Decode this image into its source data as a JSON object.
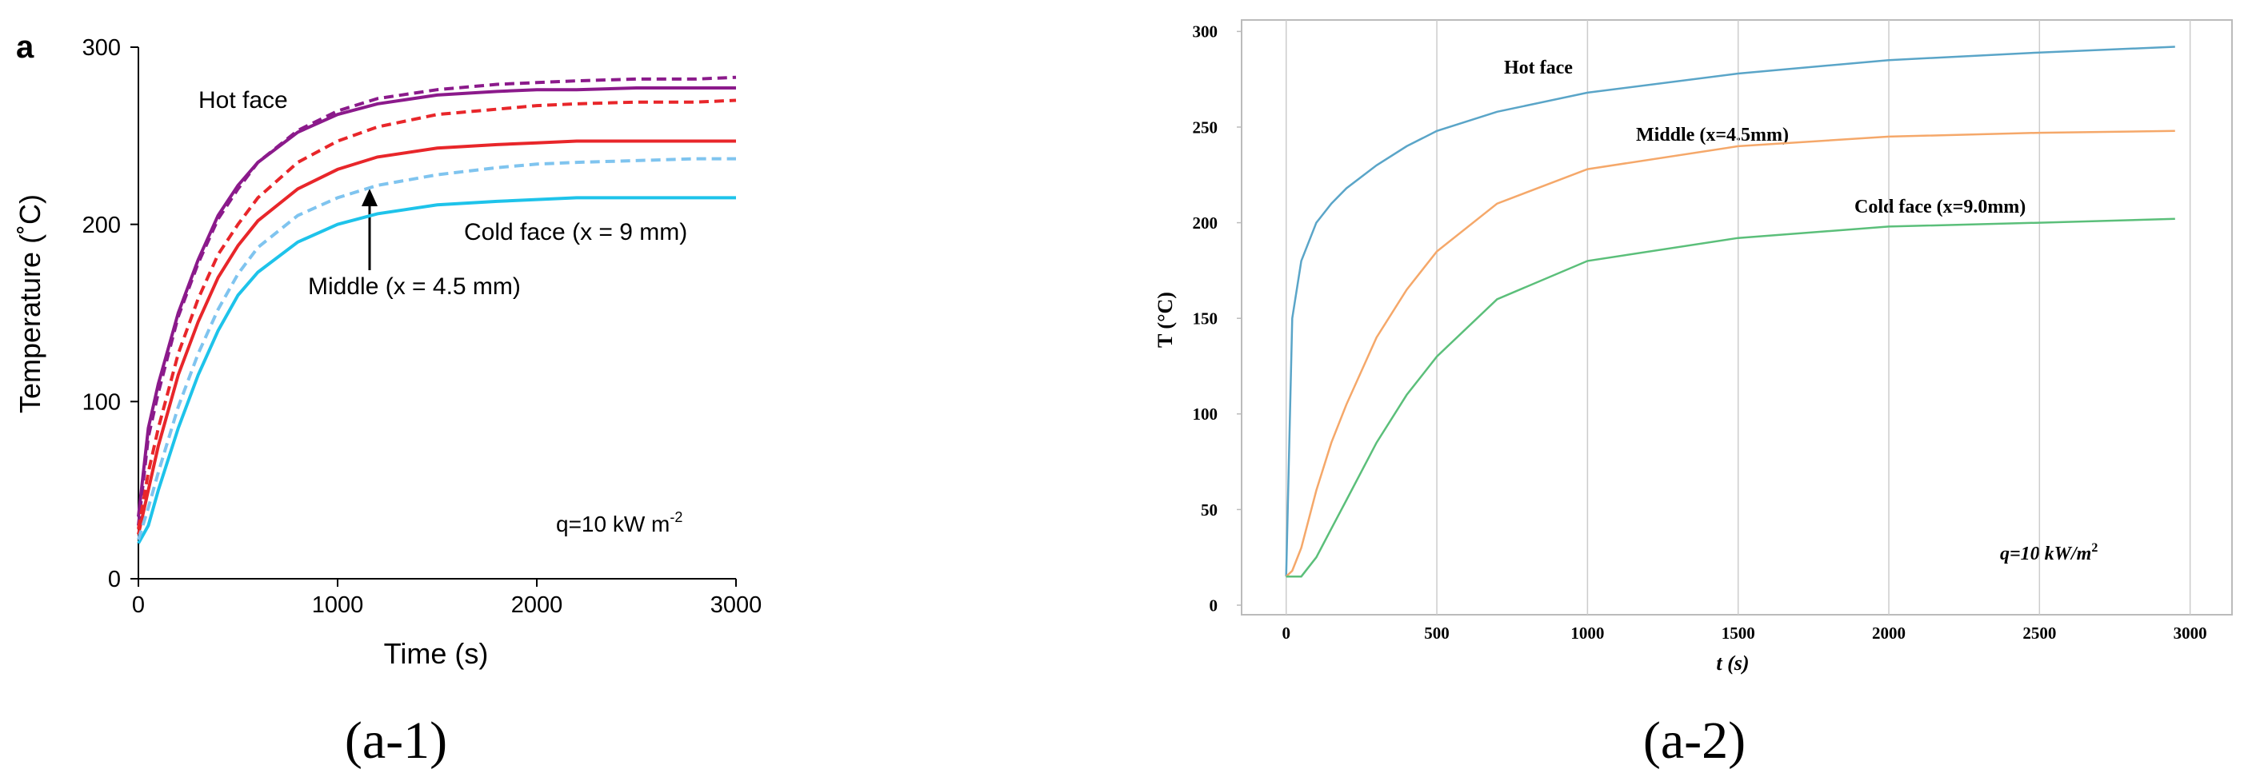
{
  "chart_data": [
    {
      "type": "line",
      "label": "a",
      "xlabel": "Time (s)",
      "ylabel": "Temperature (˚C)",
      "caption": "(a-1)",
      "annotations": [
        "Hot face",
        "Cold face (x = 9 mm)",
        "Middle (x = 4.5 mm)"
      ],
      "note": {
        "text": "q=10 kW m",
        "sup": "-2"
      },
      "xlim": [
        0,
        3000
      ],
      "ylim": [
        0,
        300
      ],
      "xticks": [
        0,
        1000,
        2000,
        3000
      ],
      "yticks": [
        0,
        100,
        200,
        300
      ],
      "grid": false,
      "x": [
        0,
        50,
        100,
        200,
        300,
        400,
        500,
        600,
        800,
        1000,
        1200,
        1500,
        1800,
        2000,
        2200,
        2500,
        2800,
        3000
      ],
      "series": [
        {
          "color": "#8b1a8b",
          "dash": false,
          "values": [
            35,
            85,
            110,
            150,
            180,
            205,
            222,
            235,
            252,
            262,
            268,
            273,
            275,
            276,
            276,
            277,
            277,
            277
          ]
        },
        {
          "color": "#8b1a8b",
          "dash": true,
          "values": [
            30,
            80,
            105,
            148,
            178,
            203,
            220,
            235,
            253,
            264,
            271,
            276,
            279,
            280,
            281,
            282,
            282,
            283
          ]
        },
        {
          "color": "#e8262a",
          "dash": false,
          "values": [
            25,
            50,
            75,
            115,
            145,
            170,
            188,
            202,
            220,
            231,
            238,
            243,
            245,
            246,
            247,
            247,
            247,
            247
          ]
        },
        {
          "color": "#e8262a",
          "dash": true,
          "values": [
            28,
            60,
            85,
            127,
            158,
            183,
            200,
            215,
            235,
            247,
            255,
            262,
            265,
            267,
            268,
            269,
            269,
            270
          ]
        },
        {
          "color": "#1ec3ea",
          "dash": false,
          "values": [
            20,
            30,
            50,
            85,
            115,
            140,
            160,
            173,
            190,
            200,
            206,
            211,
            213,
            214,
            215,
            215,
            215,
            215
          ]
        },
        {
          "color": "#7fc4ef",
          "dash": true,
          "values": [
            22,
            40,
            60,
            97,
            127,
            152,
            172,
            187,
            205,
            215,
            222,
            228,
            232,
            234,
            235,
            236,
            237,
            237
          ]
        }
      ]
    },
    {
      "type": "line",
      "xlabel": "t (s)",
      "ylabel": "T (°C)",
      "caption": "(a-2)",
      "annotations": [
        "Hot face",
        "Middle (x=4.5mm)",
        "Cold face (x=9.0mm)"
      ],
      "note": {
        "text": "q=10 kW/m",
        "sup": "2"
      },
      "xlim": [
        -148,
        3139
      ],
      "ylim": [
        -5,
        306
      ],
      "xticks": [
        0,
        500,
        1000,
        1500,
        2000,
        2500,
        3000
      ],
      "yticks": [
        0,
        50,
        100,
        150,
        200,
        250,
        300
      ],
      "grid": true,
      "x": [
        0,
        20,
        50,
        100,
        150,
        200,
        300,
        400,
        500,
        700,
        1000,
        1500,
        2000,
        2500,
        2950
      ],
      "series": [
        {
          "color": "#5aa5c8",
          "dash": false,
          "values": [
            15,
            150,
            180,
            200,
            210,
            218,
            230,
            240,
            248,
            258,
            268,
            278,
            285,
            289,
            292
          ]
        },
        {
          "color": "#f5a86a",
          "dash": false,
          "values": [
            15,
            18,
            30,
            60,
            85,
            105,
            140,
            165,
            185,
            210,
            228,
            240,
            245,
            247,
            248
          ]
        },
        {
          "color": "#5bbf7a",
          "dash": false,
          "values": [
            15,
            15,
            15,
            25,
            40,
            55,
            85,
            110,
            130,
            160,
            180,
            192,
            198,
            200,
            202
          ]
        }
      ]
    }
  ]
}
